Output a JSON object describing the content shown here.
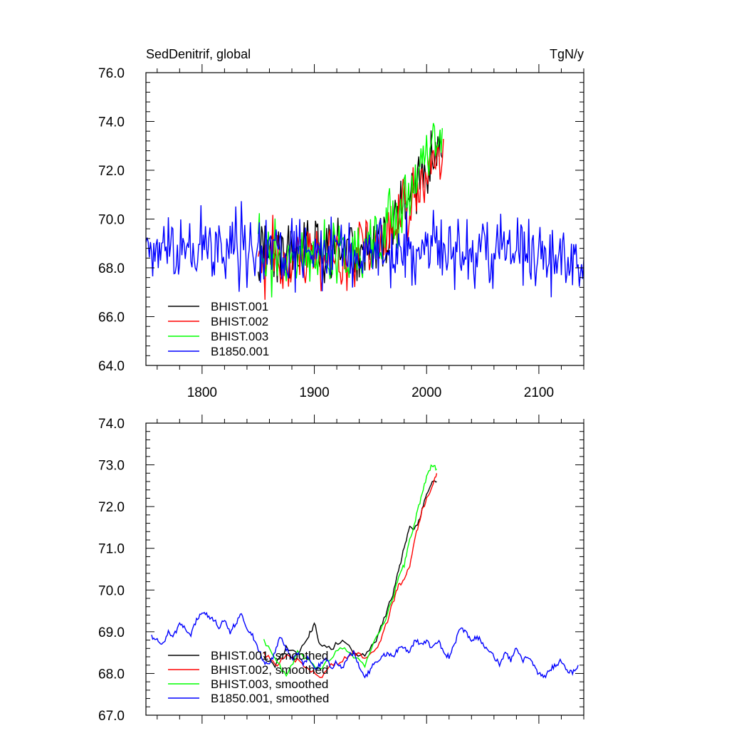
{
  "header": {
    "title": "SedDenitrif, global",
    "units": "TgN/y"
  },
  "colors": {
    "BHIST.001": "#000000",
    "BHIST.002": "#ff0000",
    "BHIST.003": "#00ff00",
    "B1850.001": "#0000ff"
  },
  "chart_data": [
    {
      "type": "line",
      "xlim": [
        1750,
        2140
      ],
      "ylim": [
        64.0,
        76.0
      ],
      "x_ticks": [
        1800,
        1900,
        2000,
        2100
      ],
      "x_tick_labels": [
        "1800",
        "1900",
        "2000",
        "2100"
      ],
      "y_ticks": [
        64,
        66,
        68,
        70,
        72,
        74,
        76
      ],
      "y_tick_labels": [
        "64.0",
        "66.0",
        "68.0",
        "70.0",
        "72.0",
        "74.0",
        "76.0"
      ],
      "legend": [
        "BHIST.001",
        "BHIST.002",
        "BHIST.003",
        "B1850.001"
      ],
      "legend_position": "bottom-left",
      "series": [
        {
          "name": "BHIST.001",
          "x_range": [
            1850,
            2014
          ],
          "trend": [
            [
              1850,
              68.6
            ],
            [
              1940,
              68.7
            ],
            [
              1960,
              69.0
            ],
            [
              1980,
              70.5
            ],
            [
              1995,
              71.9
            ],
            [
              2014,
              72.6
            ]
          ],
          "noise": 1.0
        },
        {
          "name": "BHIST.002",
          "x_range": [
            1850,
            2015
          ],
          "trend": [
            [
              1850,
              68.4
            ],
            [
              1940,
              68.5
            ],
            [
              1960,
              68.9
            ],
            [
              1980,
              70.2
            ],
            [
              1995,
              71.6
            ],
            [
              2015,
              72.8
            ]
          ],
          "noise": 1.0
        },
        {
          "name": "BHIST.003",
          "x_range": [
            1850,
            2014
          ],
          "trend": [
            [
              1850,
              68.5
            ],
            [
              1940,
              68.6
            ],
            [
              1960,
              69.0
            ],
            [
              1980,
              70.4
            ],
            [
              1995,
              72.0
            ],
            [
              2014,
              73.0
            ]
          ],
          "noise": 1.0
        },
        {
          "name": "B1850.001",
          "x_range": [
            1750,
            2140
          ],
          "trend": [
            [
              1750,
              68.6
            ],
            [
              1800,
              68.9
            ],
            [
              1900,
              68.6
            ],
            [
              2000,
              68.6
            ],
            [
              2140,
              68.4
            ]
          ],
          "noise": 1.1
        }
      ]
    },
    {
      "type": "line",
      "xlim": [
        1750,
        2140
      ],
      "ylim": [
        67.0,
        74.0
      ],
      "x_ticks": [
        1800,
        1900,
        2000,
        2100
      ],
      "y_ticks": [
        67,
        68,
        69,
        70,
        71,
        72,
        73,
        74
      ],
      "y_tick_labels": [
        "67.0",
        "68.0",
        "69.0",
        "70.0",
        "71.0",
        "72.0",
        "73.0",
        "74.0"
      ],
      "legend": [
        "BHIST.001, smoothed",
        "BHIST.002, smoothed",
        "BHIST.003, smoothed",
        "B1850.001, smoothed"
      ],
      "legend_position": "bottom-left",
      "series": [
        {
          "name": "BHIST.001, smoothed",
          "color_key": "BHIST.001",
          "points": [
            [
              1855,
              68.4
            ],
            [
              1865,
              68.2
            ],
            [
              1875,
              68.6
            ],
            [
              1885,
              68.5
            ],
            [
              1895,
              68.9
            ],
            [
              1900,
              69.2
            ],
            [
              1905,
              68.7
            ],
            [
              1915,
              68.6
            ],
            [
              1925,
              68.8
            ],
            [
              1935,
              68.5
            ],
            [
              1945,
              68.4
            ],
            [
              1955,
              68.8
            ],
            [
              1962,
              69.3
            ],
            [
              1970,
              69.9
            ],
            [
              1975,
              70.5
            ],
            [
              1980,
              71.0
            ],
            [
              1985,
              71.5
            ],
            [
              1990,
              71.5
            ],
            [
              1995,
              71.8
            ],
            [
              2000,
              72.3
            ],
            [
              2005,
              72.6
            ],
            [
              2009,
              72.6
            ]
          ]
        },
        {
          "name": "BHIST.002, smoothed",
          "color_key": "BHIST.002",
          "points": [
            [
              1855,
              68.5
            ],
            [
              1865,
              68.2
            ],
            [
              1875,
              68.4
            ],
            [
              1885,
              68.3
            ],
            [
              1895,
              68.1
            ],
            [
              1905,
              67.9
            ],
            [
              1915,
              68.2
            ],
            [
              1925,
              68.3
            ],
            [
              1935,
              68.5
            ],
            [
              1945,
              68.4
            ],
            [
              1955,
              68.6
            ],
            [
              1962,
              69.0
            ],
            [
              1970,
              69.7
            ],
            [
              1975,
              70.1
            ],
            [
              1980,
              70.3
            ],
            [
              1985,
              70.6
            ],
            [
              1990,
              71.3
            ],
            [
              1995,
              71.8
            ],
            [
              2000,
              72.2
            ],
            [
              2005,
              72.5
            ],
            [
              2009,
              72.8
            ]
          ]
        },
        {
          "name": "BHIST.003, smoothed",
          "color_key": "BHIST.003",
          "points": [
            [
              1855,
              68.8
            ],
            [
              1865,
              68.4
            ],
            [
              1875,
              67.9
            ],
            [
              1885,
              68.5
            ],
            [
              1895,
              68.3
            ],
            [
              1905,
              68.1
            ],
            [
              1915,
              68.4
            ],
            [
              1925,
              68.6
            ],
            [
              1935,
              68.4
            ],
            [
              1945,
              68.2
            ],
            [
              1955,
              68.9
            ],
            [
              1962,
              69.2
            ],
            [
              1970,
              69.8
            ],
            [
              1975,
              70.3
            ],
            [
              1980,
              70.6
            ],
            [
              1985,
              71.2
            ],
            [
              1990,
              71.7
            ],
            [
              1995,
              72.2
            ],
            [
              2000,
              72.7
            ],
            [
              2005,
              73.0
            ],
            [
              2009,
              72.9
            ]
          ]
        },
        {
          "name": "B1850.001, smoothed",
          "color_key": "B1850.001",
          "points": [
            [
              1755,
              68.9
            ],
            [
              1760,
              68.8
            ],
            [
              1765,
              68.7
            ],
            [
              1770,
              69.0
            ],
            [
              1775,
              68.9
            ],
            [
              1780,
              69.2
            ],
            [
              1785,
              69.1
            ],
            [
              1790,
              68.9
            ],
            [
              1795,
              69.3
            ],
            [
              1800,
              69.5
            ],
            [
              1805,
              69.4
            ],
            [
              1810,
              69.3
            ],
            [
              1815,
              69.1
            ],
            [
              1820,
              69.3
            ],
            [
              1825,
              69.0
            ],
            [
              1830,
              69.2
            ],
            [
              1835,
              69.4
            ],
            [
              1840,
              69.1
            ],
            [
              1845,
              68.9
            ],
            [
              1850,
              68.6
            ],
            [
              1855,
              68.3
            ],
            [
              1860,
              68.2
            ],
            [
              1865,
              68.5
            ],
            [
              1870,
              68.9
            ],
            [
              1875,
              68.6
            ],
            [
              1880,
              68.3
            ],
            [
              1885,
              68.5
            ],
            [
              1890,
              68.2
            ],
            [
              1895,
              68.4
            ],
            [
              1900,
              68.1
            ],
            [
              1905,
              68.2
            ],
            [
              1910,
              68.4
            ],
            [
              1915,
              68.1
            ],
            [
              1920,
              68.3
            ],
            [
              1925,
              68.1
            ],
            [
              1930,
              68.4
            ],
            [
              1935,
              68.5
            ],
            [
              1940,
              68.2
            ],
            [
              1945,
              67.9
            ],
            [
              1950,
              68.1
            ],
            [
              1955,
              68.3
            ],
            [
              1960,
              68.4
            ],
            [
              1965,
              68.5
            ],
            [
              1970,
              68.4
            ],
            [
              1975,
              68.6
            ],
            [
              1980,
              68.6
            ],
            [
              1985,
              68.5
            ],
            [
              1990,
              68.8
            ],
            [
              1995,
              68.7
            ],
            [
              2000,
              68.8
            ],
            [
              2005,
              68.6
            ],
            [
              2010,
              68.8
            ],
            [
              2015,
              68.5
            ],
            [
              2020,
              68.4
            ],
            [
              2025,
              68.7
            ],
            [
              2030,
              69.1
            ],
            [
              2035,
              69.0
            ],
            [
              2040,
              68.8
            ],
            [
              2045,
              68.9
            ],
            [
              2050,
              68.7
            ],
            [
              2055,
              68.6
            ],
            [
              2060,
              68.4
            ],
            [
              2065,
              68.2
            ],
            [
              2070,
              68.5
            ],
            [
              2075,
              68.3
            ],
            [
              2080,
              68.6
            ],
            [
              2085,
              68.3
            ],
            [
              2090,
              68.4
            ],
            [
              2095,
              68.2
            ],
            [
              2100,
              68.0
            ],
            [
              2105,
              67.9
            ],
            [
              2110,
              68.1
            ],
            [
              2115,
              68.2
            ],
            [
              2120,
              68.3
            ],
            [
              2125,
              68.1
            ],
            [
              2130,
              68.0
            ],
            [
              2135,
              68.2
            ]
          ]
        }
      ]
    }
  ]
}
